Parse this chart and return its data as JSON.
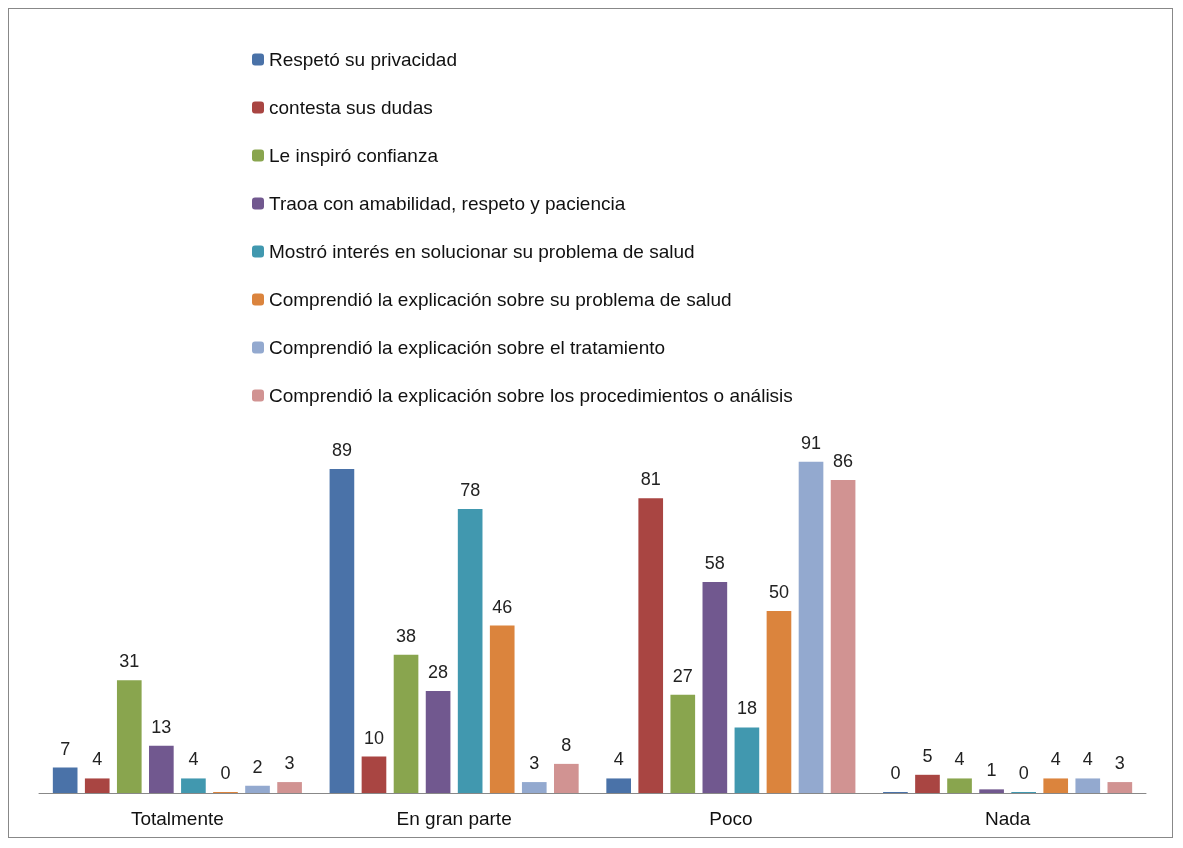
{
  "chart_data": {
    "type": "bar",
    "categories": [
      "Totalmente",
      "En gran parte",
      "Poco",
      "Nada"
    ],
    "series": [
      {
        "name": "Respetó su privacidad",
        "color": "#4a72a8",
        "values": [
          7,
          89,
          4,
          0
        ]
      },
      {
        "name": "contesta sus dudas",
        "color": "#a94542",
        "values": [
          4,
          10,
          81,
          5
        ]
      },
      {
        "name": "Le inspiró confianza",
        "color": "#89a54e",
        "values": [
          31,
          38,
          27,
          4
        ]
      },
      {
        "name": "Traoa con amabilidad, respeto y paciencia",
        "color": "#71588f",
        "values": [
          13,
          28,
          58,
          1
        ]
      },
      {
        "name": "Mostró interés en solucionar su problema de salud",
        "color": "#4198af",
        "values": [
          4,
          78,
          18,
          0
        ]
      },
      {
        "name": "Comprendió la explicación sobre su problema de salud",
        "color": "#db843d",
        "values": [
          0,
          46,
          50,
          4
        ]
      },
      {
        "name": "Comprendió la explicación sobre el tratamiento",
        "color": "#93a9cf",
        "values": [
          2,
          3,
          91,
          4
        ]
      },
      {
        "name": "Comprendió la explicación sobre los procedimientos o análisis",
        "color": "#d19392",
        "values": [
          3,
          8,
          86,
          3
        ]
      }
    ],
    "data_labels": true,
    "legend": "top",
    "grid": false,
    "tick_labels": "x"
  }
}
